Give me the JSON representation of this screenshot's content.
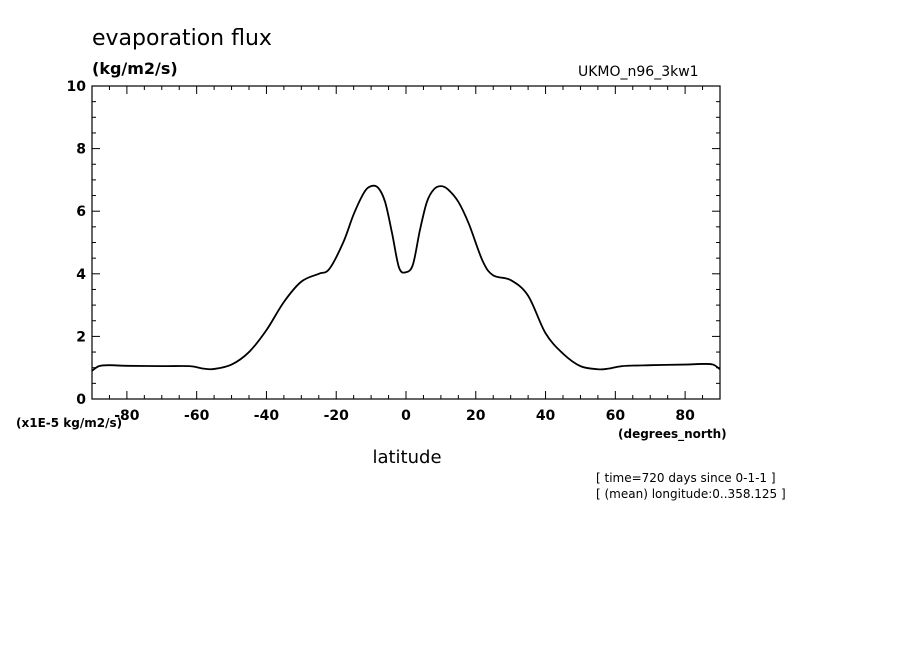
{
  "chart_data": {
    "type": "line",
    "title": "evaporation flux",
    "units": "(kg/m2/s)",
    "dataset": "UKMO_n96_3kw1",
    "xlabel": "latitude",
    "x_units": "(degrees_north)",
    "y_scale_note": "(x1E-5 kg/m2/s)",
    "xlim": [
      -90,
      90
    ],
    "ylim": [
      0,
      10
    ],
    "x_ticks": [
      -80,
      -60,
      -40,
      -20,
      0,
      20,
      40,
      60,
      80
    ],
    "y_ticks": [
      0,
      2,
      4,
      6,
      8,
      10
    ],
    "x_tick_labels": [
      "-80",
      "-60",
      "-40",
      "-20",
      "0",
      "20",
      "40",
      "60",
      "80"
    ],
    "y_tick_labels": [
      "0",
      "2",
      "4",
      "6",
      "8",
      "10"
    ],
    "grid": false,
    "series": [
      {
        "x": [
          -90,
          -88,
          -85,
          -80,
          -70,
          -62,
          -58,
          -55,
          -50,
          -45,
          -40,
          -35,
          -30,
          -25,
          -22,
          -18,
          -15,
          -12,
          -10,
          -8,
          -6,
          -4,
          -2,
          0,
          2,
          4,
          6,
          8,
          10,
          12,
          15,
          18,
          22,
          25,
          30,
          35,
          40,
          45,
          50,
          55,
          58,
          62,
          70,
          80,
          85,
          88,
          90
        ],
        "y": [
          0.9,
          1.05,
          1.08,
          1.06,
          1.05,
          1.05,
          0.97,
          0.96,
          1.1,
          1.5,
          2.2,
          3.1,
          3.75,
          4.0,
          4.15,
          5.0,
          5.9,
          6.6,
          6.8,
          6.75,
          6.3,
          5.3,
          4.2,
          4.05,
          4.3,
          5.4,
          6.3,
          6.7,
          6.8,
          6.7,
          6.3,
          5.6,
          4.4,
          3.95,
          3.8,
          3.3,
          2.1,
          1.45,
          1.05,
          0.95,
          0.97,
          1.05,
          1.08,
          1.1,
          1.12,
          1.1,
          0.95
        ]
      }
    ]
  },
  "info": {
    "line1": "[ time=720 days since 0-1-1 ]",
    "line2": "[ (mean) longitude:0..358.125 ]"
  }
}
